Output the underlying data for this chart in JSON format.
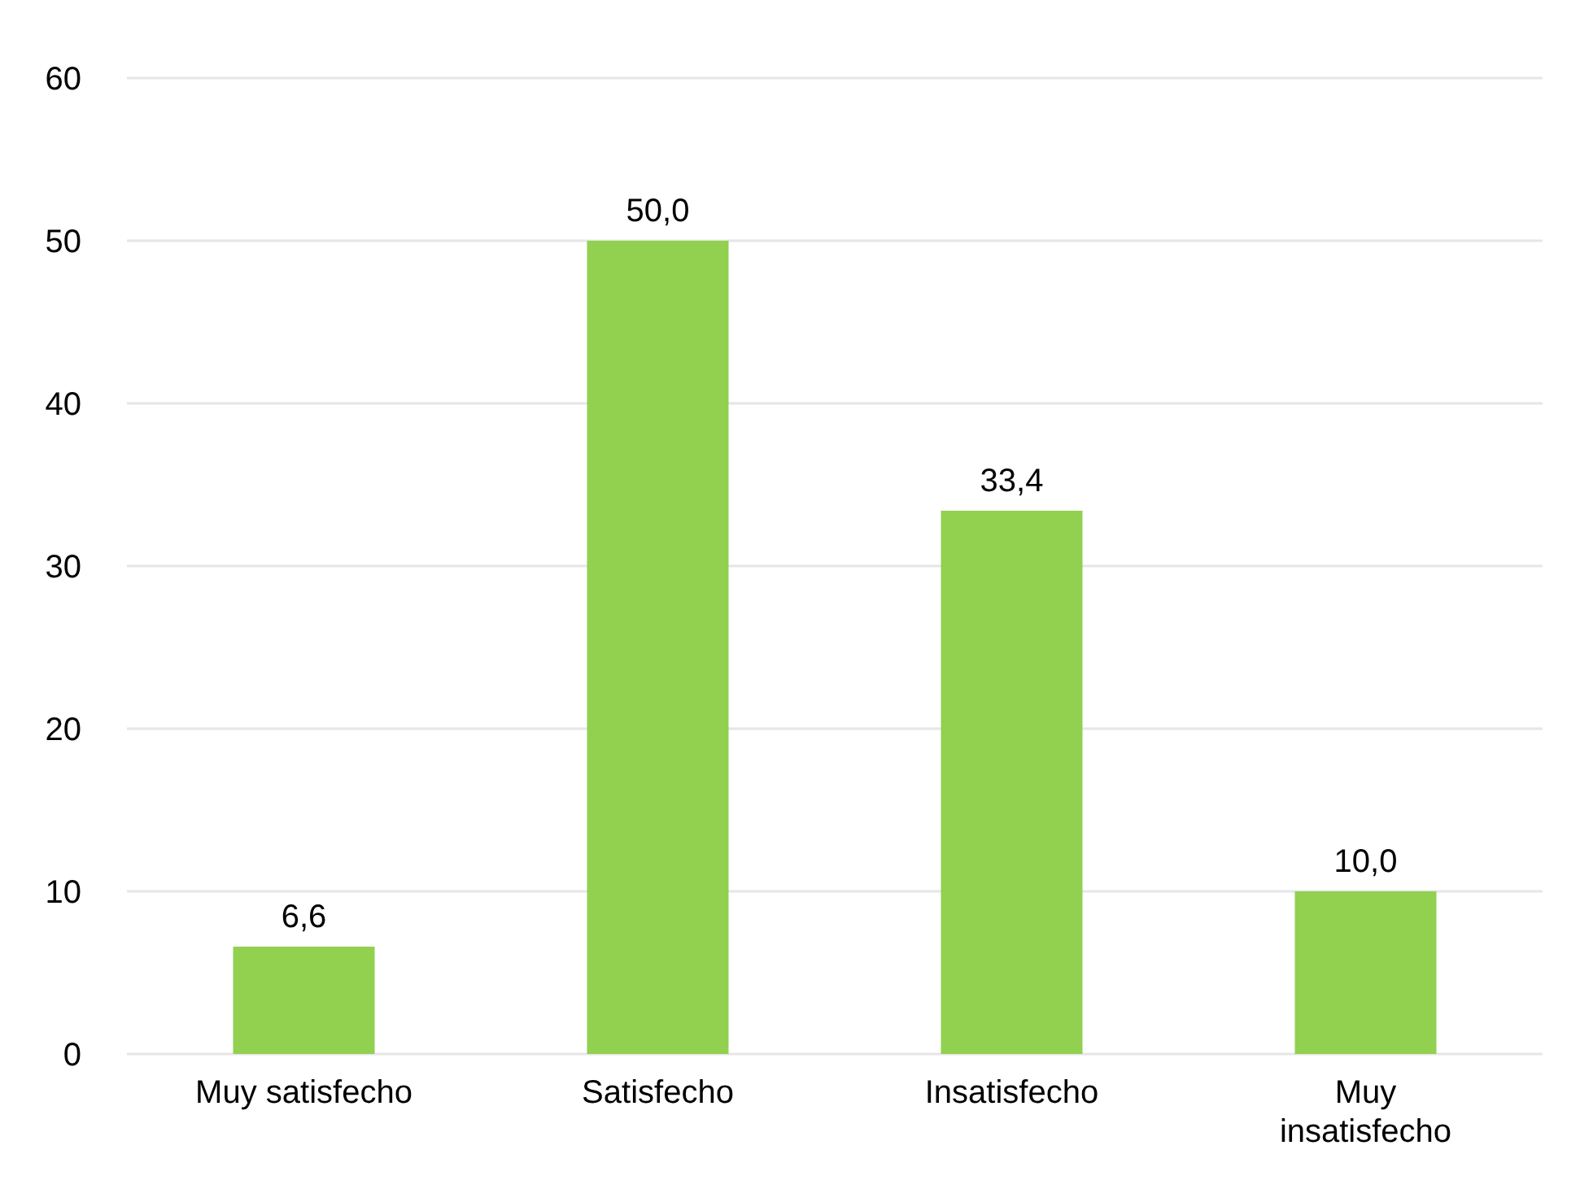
{
  "chart_data": {
    "type": "bar",
    "categories": [
      "Muy satisfecho",
      "Satisfecho",
      "Insatisfecho",
      "Muy insatisfecho"
    ],
    "values": [
      6.6,
      50.0,
      33.4,
      10.0
    ],
    "value_labels": [
      "6,6",
      "50,0",
      "33,4",
      "10,0"
    ],
    "color": "#92d050",
    "ylim": [
      0,
      60
    ],
    "yticks": [
      0,
      10,
      20,
      30,
      40,
      50,
      60
    ],
    "grid": "y"
  }
}
